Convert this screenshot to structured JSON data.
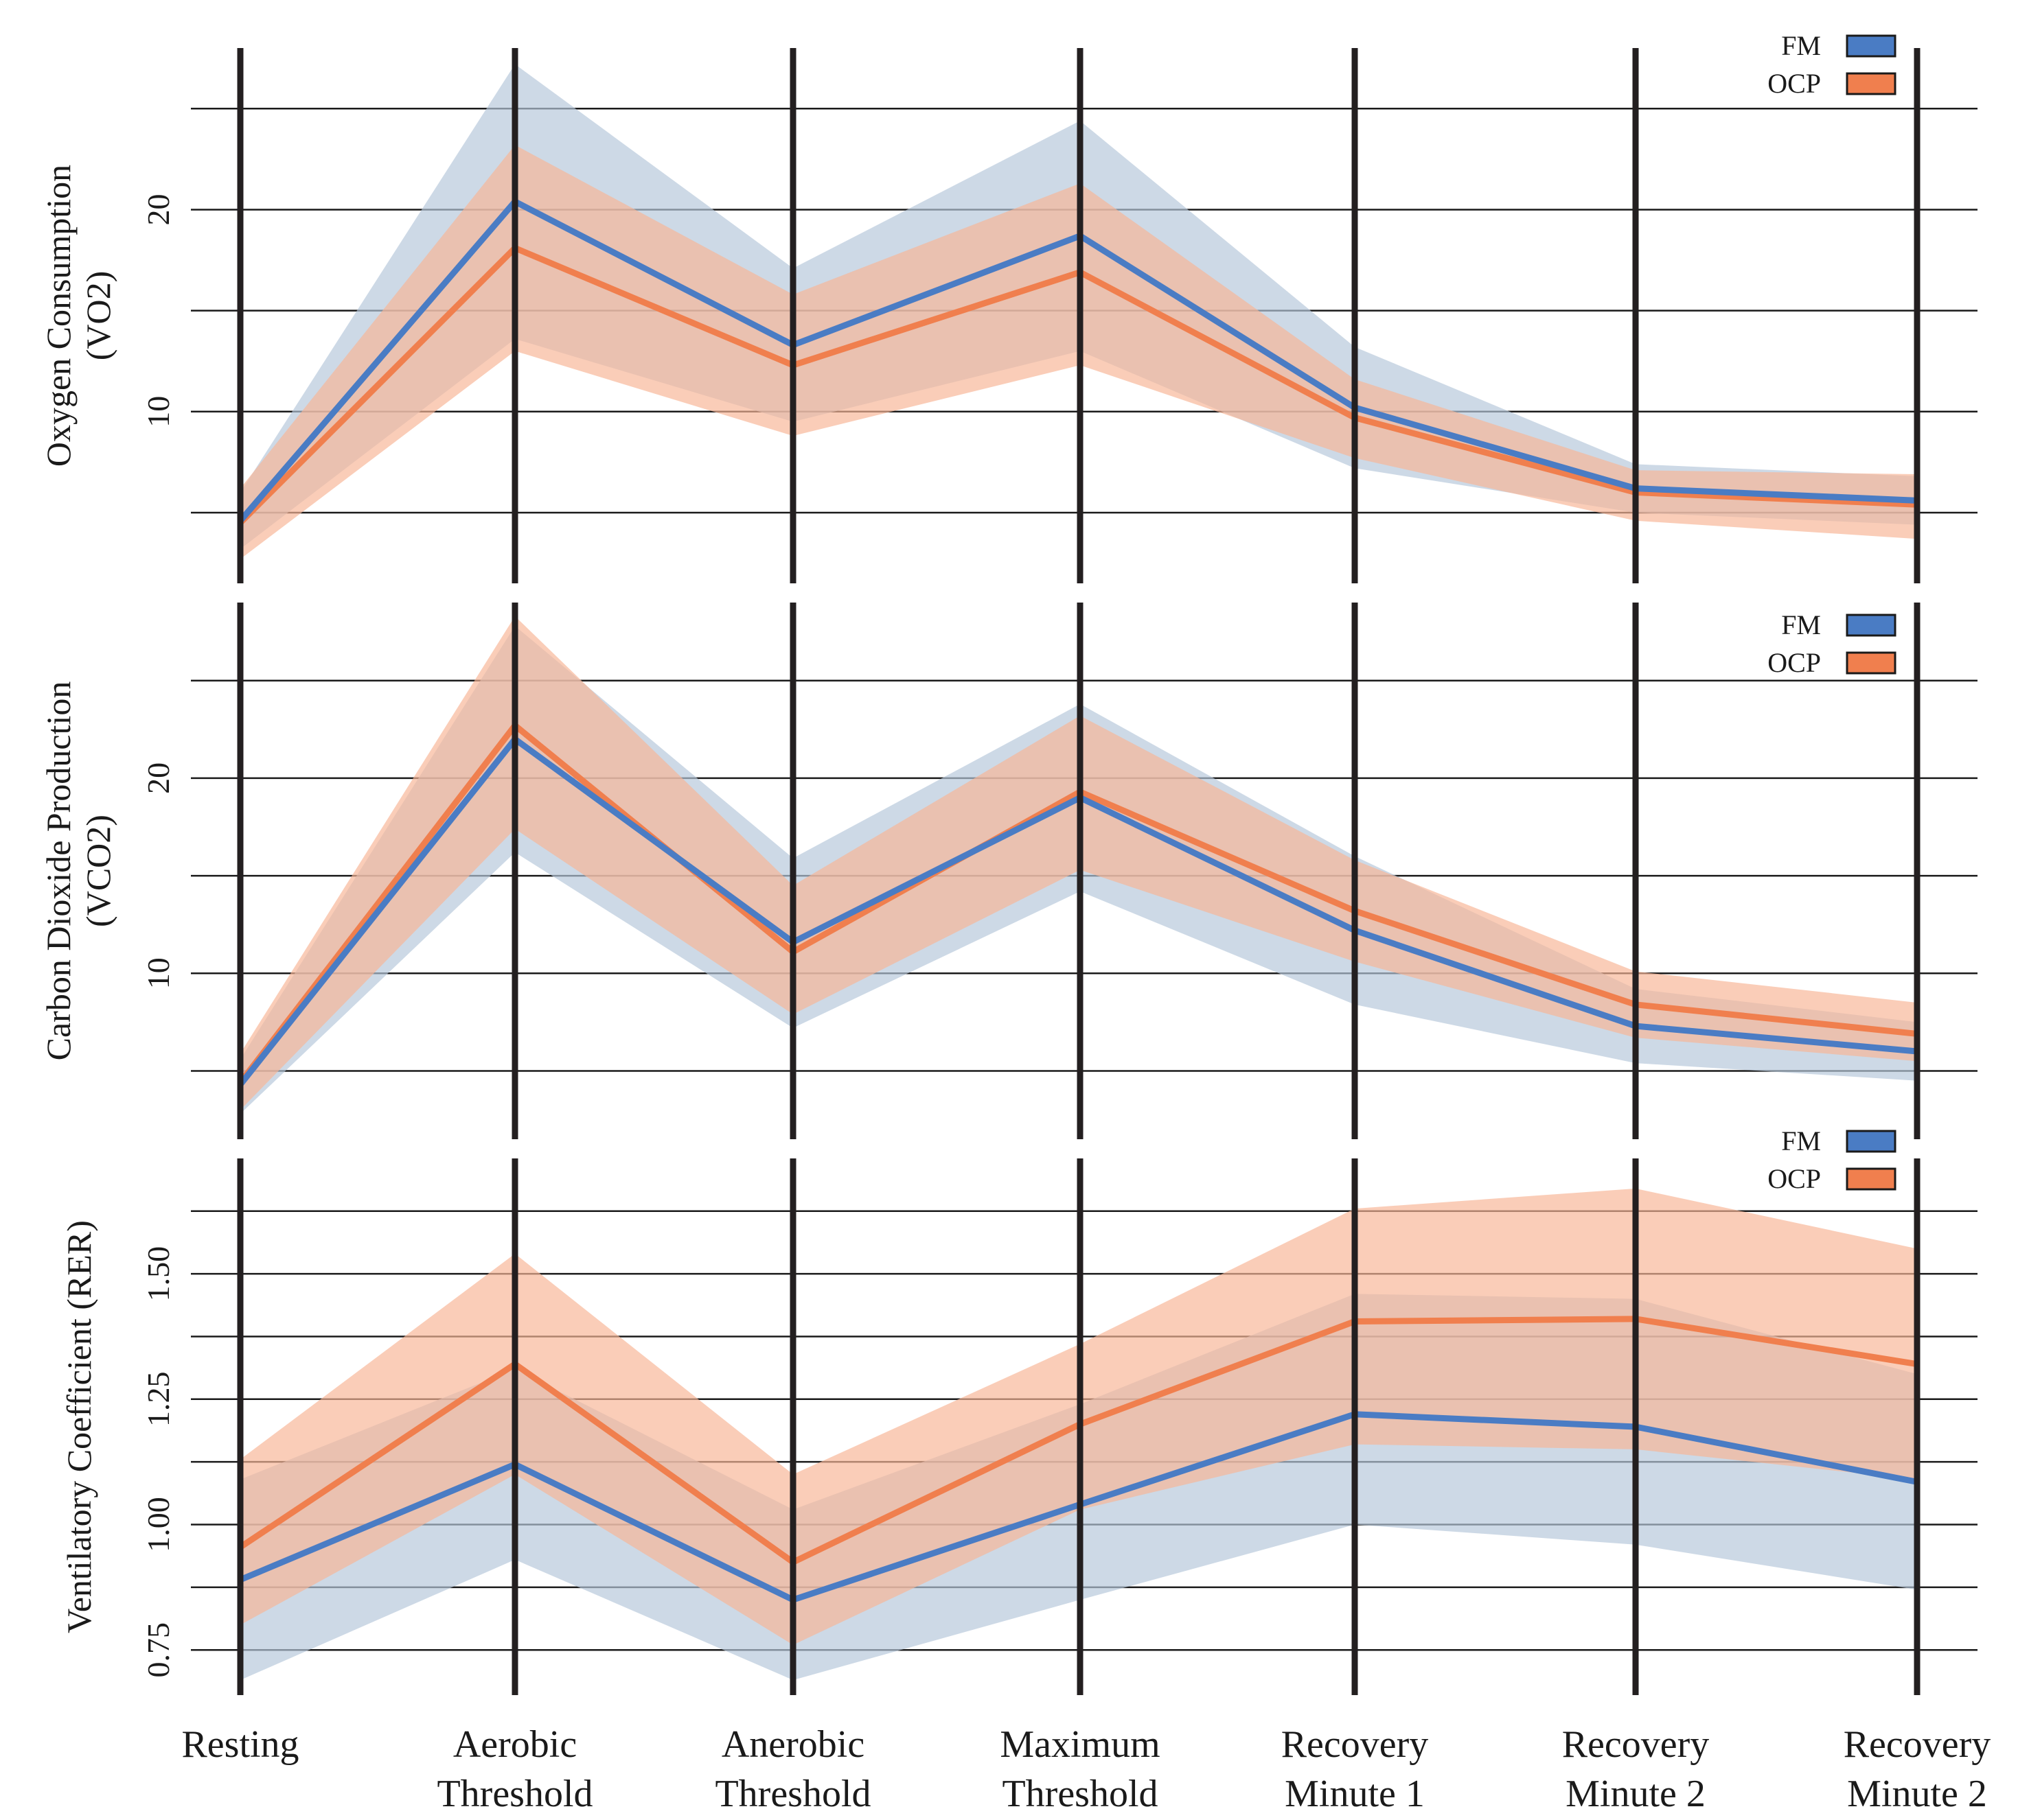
{
  "chart_data": [
    {
      "type": "line",
      "ylabel_lines": [
        "Oxygen Consumption",
        "(VO2)"
      ],
      "categories": [
        "Resting",
        "Aerobic Threshold",
        "Anerobic Threshold",
        "Maximum Threshold",
        "Recovery Minute 1",
        "Recovery Minute 2",
        "Recovery Minute 2"
      ],
      "ylim": [
        1.5,
        28
      ],
      "gridlines": [
        5,
        10,
        15,
        20,
        25
      ],
      "yticks": [
        {
          "value": 10,
          "label": "10"
        },
        {
          "value": 20,
          "label": "20"
        }
      ],
      "legend": {
        "position": "top-right",
        "entries": [
          "FM",
          "OCP"
        ]
      },
      "series": [
        {
          "name": "FM",
          "color": "#4a7cc4",
          "band_color": "#b6c7da",
          "values": [
            4.6,
            20.4,
            13.3,
            18.7,
            10.2,
            6.2,
            5.6
          ],
          "lower": [
            3.2,
            13.6,
            9.5,
            13.0,
            7.2,
            5.0,
            4.4
          ],
          "upper": [
            6.0,
            27.2,
            17.1,
            24.4,
            13.2,
            7.4,
            6.8
          ]
        },
        {
          "name": "OCP",
          "color": "#f07f4e",
          "band_color": "#f8b697",
          "values": [
            4.5,
            18.1,
            12.3,
            16.9,
            9.7,
            6.0,
            5.4
          ],
          "lower": [
            2.7,
            13.0,
            8.8,
            12.3,
            7.7,
            4.6,
            3.7
          ],
          "upper": [
            6.2,
            23.2,
            15.8,
            21.3,
            11.6,
            7.1,
            6.9
          ]
        }
      ]
    },
    {
      "type": "line",
      "ylabel_lines": [
        "Carbon Dioxide Production",
        "(VCO2)"
      ],
      "categories": [
        "Resting",
        "Aerobic Threshold",
        "Anerobic Threshold",
        "Maximum Threshold",
        "Recovery Minute 1",
        "Recovery Minute 2",
        "Recovery Minute 2"
      ],
      "ylim": [
        1.5,
        29
      ],
      "gridlines": [
        5,
        10,
        15,
        20,
        25
      ],
      "yticks": [
        {
          "value": 10,
          "label": "10"
        },
        {
          "value": 20,
          "label": "20"
        }
      ],
      "legend": {
        "position": "top-right",
        "entries": [
          "FM",
          "OCP"
        ]
      },
      "series": [
        {
          "name": "FM",
          "color": "#4a7cc4",
          "band_color": "#b6c7da",
          "values": [
            4.3,
            22.0,
            11.6,
            19.0,
            12.2,
            7.3,
            6.0
          ],
          "lower": [
            2.8,
            16.2,
            7.2,
            14.2,
            8.4,
            5.4,
            4.5
          ],
          "upper": [
            5.6,
            27.8,
            15.9,
            23.8,
            16.0,
            9.2,
            7.5
          ]
        },
        {
          "name": "OCP",
          "color": "#f07f4e",
          "band_color": "#f8b697",
          "values": [
            4.4,
            22.7,
            11.1,
            19.3,
            13.2,
            8.4,
            6.9
          ],
          "lower": [
            3.0,
            17.4,
            7.9,
            15.3,
            10.6,
            6.7,
            5.5
          ],
          "upper": [
            5.9,
            28.3,
            14.5,
            23.2,
            15.8,
            10.1,
            8.5
          ]
        }
      ]
    },
    {
      "type": "line",
      "ylabel_lines": [
        "Ventilatory Coefficient (RER)"
      ],
      "categories": [
        "Resting",
        "Aerobic Threshold",
        "Anerobic Threshold",
        "Maximum Threshold",
        "Recovery Minute 1",
        "Recovery Minute 2",
        "Recovery Minute 2"
      ],
      "ylim": [
        0.66,
        1.73
      ],
      "gridlines": [
        0.75,
        0.875,
        1.0,
        1.125,
        1.25,
        1.375,
        1.5,
        1.625
      ],
      "yticks": [
        {
          "value": 0.75,
          "label": "0.75"
        },
        {
          "value": 1.0,
          "label": "1.00"
        },
        {
          "value": 1.25,
          "label": "1.25"
        },
        {
          "value": 1.5,
          "label": "1.50"
        }
      ],
      "legend": {
        "position": "top-right",
        "entries": [
          "FM",
          "OCP"
        ]
      },
      "series": [
        {
          "name": "FM",
          "color": "#4a7cc4",
          "band_color": "#b6c7da",
          "values": [
            0.89,
            1.12,
            0.85,
            1.04,
            1.22,
            1.195,
            1.085
          ],
          "lower": [
            0.69,
            0.93,
            0.69,
            0.85,
            1.0,
            0.96,
            0.87
          ],
          "upper": [
            1.09,
            1.31,
            1.03,
            1.24,
            1.46,
            1.45,
            1.3
          ]
        },
        {
          "name": "OCP",
          "color": "#f07f4e",
          "band_color": "#f8b697",
          "values": [
            0.955,
            1.32,
            0.925,
            1.2,
            1.405,
            1.41,
            1.32
          ],
          "lower": [
            0.8,
            1.1,
            0.76,
            1.03,
            1.16,
            1.15,
            1.09
          ],
          "upper": [
            1.13,
            1.54,
            1.1,
            1.36,
            1.63,
            1.67,
            1.55
          ]
        }
      ]
    }
  ]
}
